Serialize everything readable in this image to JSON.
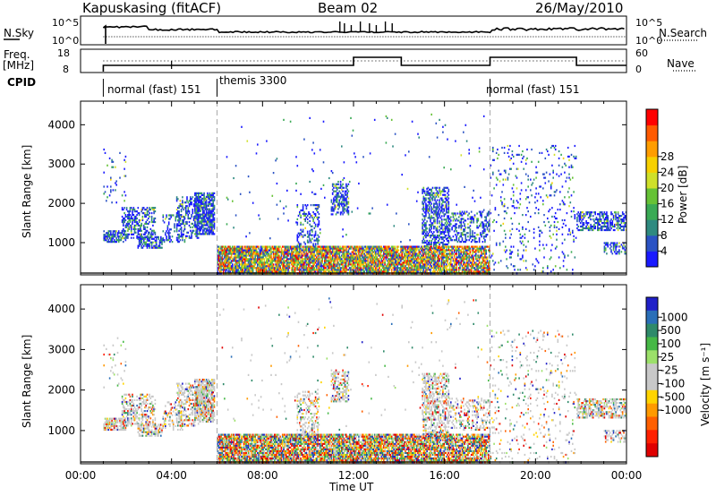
{
  "header": {
    "station": "Kapuskasing (fitACF)",
    "beam": "Beam 02",
    "date": "26/May/2010"
  },
  "side_labels": {
    "nsky": "N.Sky",
    "freq": "Freq.",
    "freq_unit": "[MHz]",
    "cpid": "CPID",
    "nsearch": "N.Search",
    "nave": "Nave"
  },
  "noise_panel": {
    "left_ticks": [
      "10^5",
      "10^0"
    ],
    "right_ticks": [
      "10^5",
      "10^0"
    ]
  },
  "freq_panel": {
    "left_ticks": [
      "18",
      "8"
    ],
    "right_ticks": [
      "60",
      "0"
    ]
  },
  "cpid_segments": [
    {
      "label": "normal (fast) 151",
      "start_hour": 1.0
    },
    {
      "label": "themis 3300",
      "start_hour": 6.0
    },
    {
      "label": "normal (fast) 151",
      "start_hour": 18.0
    }
  ],
  "chart_data": [
    {
      "type": "heatmap",
      "name": "power",
      "ylabel": "Slant Range [km]",
      "ylim": [
        180,
        4600
      ],
      "yticks": [
        1000,
        2000,
        3000,
        4000
      ],
      "xlim": [
        0,
        24
      ],
      "colorbar": {
        "label": "Power [dB]",
        "ticks": [
          4,
          8,
          12,
          16,
          20,
          24,
          28
        ],
        "colors": [
          "#1a1aff",
          "#2b53c4",
          "#2f8a80",
          "#3aaa55",
          "#66c236",
          "#cfe02a",
          "#f7d000",
          "#ff9d00",
          "#ff5a00",
          "#ff0000"
        ]
      }
    },
    {
      "type": "heatmap",
      "name": "velocity",
      "ylabel": "Slant Range [km]",
      "ylim": [
        180,
        4600
      ],
      "yticks": [
        1000,
        2000,
        3000,
        4000
      ],
      "xlim": [
        0,
        24
      ],
      "colorbar": {
        "label": "Velocity [m s⁻¹]",
        "ticks": [
          1000,
          500,
          100,
          25,
          -25,
          -100,
          -500,
          -1000
        ],
        "colors": [
          "#2020c8",
          "#2a6fb8",
          "#2f8a6a",
          "#46b846",
          "#9ce06a",
          "#c8c8c8",
          "#c8c8c8",
          "#ffd400",
          "#ff9a00",
          "#ff6000",
          "#ff2000",
          "#e00000"
        ]
      }
    }
  ],
  "x_axis": {
    "label": "Time UT",
    "ticks": [
      "00:00",
      "04:00",
      "08:00",
      "12:00",
      "16:00",
      "20:00",
      "00:00"
    ]
  }
}
